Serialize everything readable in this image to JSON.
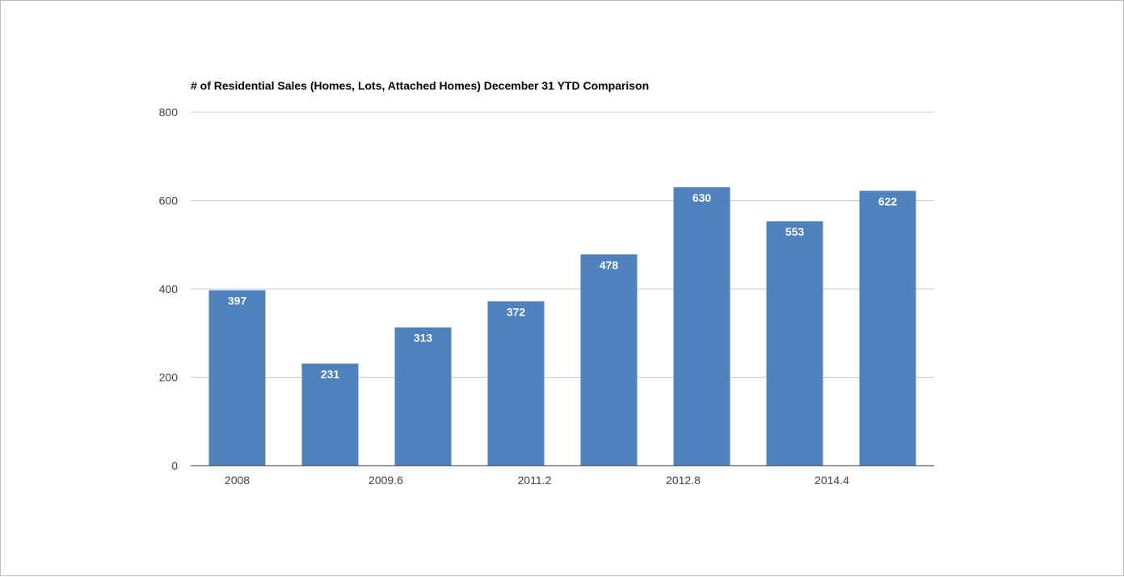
{
  "chart_data": {
    "type": "bar",
    "title": "# of Residential Sales (Homes, Lots, Attached Homes) December 31 YTD Comparison",
    "xlabel": "",
    "ylabel": "",
    "x": [
      2008,
      2009,
      2010,
      2011,
      2012,
      2013,
      2014,
      2015
    ],
    "values": [
      397,
      231,
      313,
      372,
      478,
      630,
      553,
      622
    ],
    "data_labels": [
      "397",
      "231",
      "313",
      "372",
      "478",
      "630",
      "553",
      "622"
    ],
    "xlim": [
      2007.5,
      2015.5
    ],
    "ylim": [
      0,
      800
    ],
    "y_ticks": [
      0,
      200,
      400,
      600,
      800
    ],
    "y_tick_labels": [
      "0",
      "200",
      "400",
      "600",
      "800"
    ],
    "x_ticks": [
      2008,
      2009.6,
      2011.2,
      2012.8,
      2014.4
    ],
    "x_tick_labels": [
      "2008",
      "2009.6",
      "2011.2",
      "2012.8",
      "2014.4"
    ],
    "grid": true,
    "legend": "none",
    "colors": {
      "bar": "#4f81bd",
      "grid": "#cccccc",
      "axis": "#333333"
    }
  }
}
